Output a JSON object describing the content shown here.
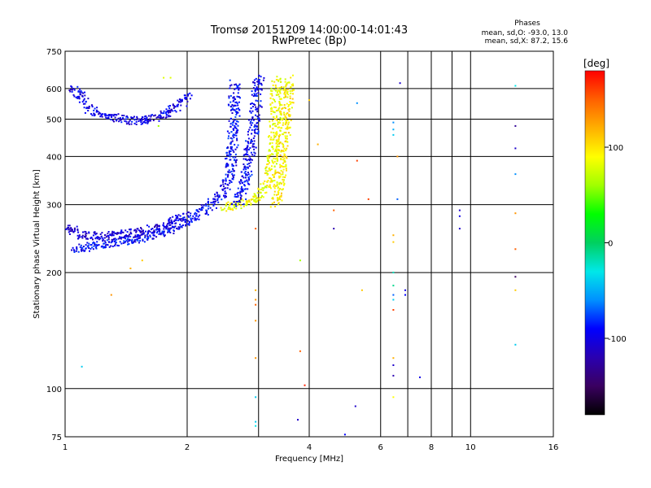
{
  "header": {
    "title": "Tromsø 20151209 14:00:00-14:01:43",
    "subtitle": "RwPretec (Bp)"
  },
  "phase_info": {
    "title": "Phases",
    "line1": "mean, sd,O: -93.0, 13.0",
    "line2": "mean, sd,X:  87.2, 15.6"
  },
  "colors": {
    "grid": "#000000",
    "colorbar_stops": [
      "#000000",
      "#3a0060",
      "#2a00b0",
      "#0000ff",
      "#0090ff",
      "#00e8e8",
      "#00d060",
      "#00ff00",
      "#a0ff00",
      "#ffff00",
      "#ffb000",
      "#ff6000",
      "#ff0000"
    ]
  },
  "colorbar": {
    "label": "[deg]",
    "ticks": [
      {
        "value": 100,
        "label": "100"
      },
      {
        "value": 0,
        "label": "0"
      },
      {
        "value": -100,
        "label": "-100"
      }
    ],
    "range": [
      -180,
      180
    ]
  },
  "chart_data": {
    "type": "scatter",
    "xlabel": "Frequency [MHz]",
    "ylabel": "Stationary phase Virtual Height [km]",
    "x_scale": "log",
    "y_scale": "log",
    "xlim": [
      1,
      16
    ],
    "ylim": [
      75,
      750
    ],
    "grid": true,
    "x_ticks": [
      {
        "value": 1,
        "label": "1"
      },
      {
        "value": 2,
        "label": "2"
      },
      {
        "value": 4,
        "label": "4"
      },
      {
        "value": 6,
        "label": "6"
      },
      {
        "value": 8,
        "label": "8"
      },
      {
        "value": 10,
        "label": "10"
      },
      {
        "value": 16,
        "label": "16"
      }
    ],
    "x_grid": [
      1,
      2,
      3,
      4,
      6,
      7,
      8,
      9,
      10,
      16
    ],
    "y_ticks": [
      {
        "value": 75,
        "label": "75"
      },
      {
        "value": 100,
        "label": "100"
      },
      {
        "value": 200,
        "label": "200"
      },
      {
        "value": 300,
        "label": "300"
      },
      {
        "value": 400,
        "label": "400"
      },
      {
        "value": 500,
        "label": "500"
      },
      {
        "value": 600,
        "label": "600"
      },
      {
        "value": 750,
        "label": "750"
      }
    ],
    "y_grid": [
      100,
      200,
      300,
      400,
      500,
      600
    ],
    "series": [
      {
        "description_trace": "O-mode F-layer trace",
        "phase": -93,
        "x": [
          1.05,
          1.1,
          1.2,
          1.3,
          1.45,
          1.6,
          1.8,
          2.0,
          2.15,
          2.3,
          2.45,
          2.55,
          2.6,
          2.62
        ],
        "y": [
          230,
          232,
          235,
          238,
          242,
          248,
          258,
          272,
          285,
          300,
          320,
          360,
          450,
          620
        ]
      },
      {
        "description_trace": "X-mode F-layer trace",
        "phase": 87,
        "x": [
          2.45,
          2.6,
          2.8,
          3.0,
          3.15,
          3.25,
          3.3,
          3.32
        ],
        "y": [
          295,
          298,
          305,
          318,
          340,
          400,
          500,
          640
        ]
      },
      {
        "description_trace": "O-mode cusp band",
        "phase": -95,
        "x": [
          2.65,
          2.75,
          2.85,
          2.95,
          3.0
        ],
        "y": [
          300,
          330,
          400,
          520,
          640
        ]
      },
      {
        "description_trace": "X-mode cusp band",
        "phase": 95,
        "x": [
          3.3,
          3.38,
          3.45,
          3.52,
          3.58
        ],
        "y": [
          300,
          340,
          420,
          520,
          640
        ]
      },
      {
        "description_trace": "Upper O-mode echo",
        "phase": -100,
        "x": [
          1.05,
          1.15,
          1.3,
          1.5,
          1.7,
          1.9,
          2.0
        ],
        "y": [
          600,
          530,
          505,
          495,
          505,
          540,
          580
        ]
      },
      {
        "description_trace": "Lower O-mode band",
        "phase": -105,
        "x": [
          1.02,
          1.1,
          1.25,
          1.45,
          1.7,
          2.0
        ],
        "y": [
          260,
          250,
          248,
          252,
          262,
          282
        ]
      }
    ],
    "scattered_points": [
      [
        6.45,
        490,
        -60
      ],
      [
        6.45,
        470,
        -50
      ],
      [
        6.45,
        455,
        -40
      ],
      [
        6.45,
        200,
        -20
      ],
      [
        6.45,
        185,
        -10
      ],
      [
        6.45,
        175,
        -70
      ],
      [
        6.45,
        170,
        -40
      ],
      [
        6.45,
        160,
        160
      ],
      [
        6.45,
        120,
        120
      ],
      [
        6.45,
        115,
        -110
      ],
      [
        6.45,
        108,
        -120
      ],
      [
        6.45,
        95,
        90
      ],
      [
        6.45,
        250,
        120
      ],
      [
        6.45,
        240,
        110
      ],
      [
        6.7,
        620,
        -110
      ],
      [
        6.6,
        400,
        130
      ],
      [
        6.6,
        310,
        -70
      ],
      [
        6.9,
        180,
        -100
      ],
      [
        6.9,
        175,
        -90
      ],
      [
        7.5,
        107,
        -100
      ],
      [
        9.4,
        290,
        -110
      ],
      [
        9.4,
        280,
        -100
      ],
      [
        9.4,
        260,
        -110
      ],
      [
        12.9,
        610,
        -30
      ],
      [
        12.9,
        480,
        -130
      ],
      [
        12.9,
        420,
        -110
      ],
      [
        12.9,
        360,
        -60
      ],
      [
        12.9,
        285,
        130
      ],
      [
        12.9,
        230,
        150
      ],
      [
        12.9,
        195,
        -150
      ],
      [
        12.9,
        180,
        110
      ],
      [
        12.9,
        130,
        -40
      ],
      [
        4.6,
        290,
        150
      ],
      [
        4.6,
        260,
        -120
      ],
      [
        5.25,
        550,
        -60
      ],
      [
        5.25,
        390,
        160
      ],
      [
        5.6,
        310,
        160
      ],
      [
        5.4,
        180,
        110
      ],
      [
        3.8,
        215,
        60
      ],
      [
        3.8,
        125,
        150
      ],
      [
        3.9,
        102,
        170
      ],
      [
        3.75,
        83,
        -110
      ],
      [
        5.2,
        90,
        -110
      ],
      [
        4.9,
        76,
        -90
      ],
      [
        2.95,
        260,
        150
      ],
      [
        2.95,
        180,
        120
      ],
      [
        2.95,
        170,
        130
      ],
      [
        2.95,
        165,
        150
      ],
      [
        2.95,
        150,
        130
      ],
      [
        2.95,
        120,
        130
      ],
      [
        2.95,
        95,
        -40
      ],
      [
        2.95,
        82,
        -40
      ],
      [
        2.95,
        80,
        -30
      ],
      [
        1.1,
        114,
        -40
      ],
      [
        1.3,
        175,
        130
      ],
      [
        1.45,
        205,
        120
      ],
      [
        1.75,
        640,
        80
      ],
      [
        1.82,
        640,
        80
      ],
      [
        1.7,
        480,
        60
      ],
      [
        1.55,
        215,
        110
      ],
      [
        4.2,
        430,
        120
      ],
      [
        4.0,
        560,
        110
      ]
    ]
  }
}
